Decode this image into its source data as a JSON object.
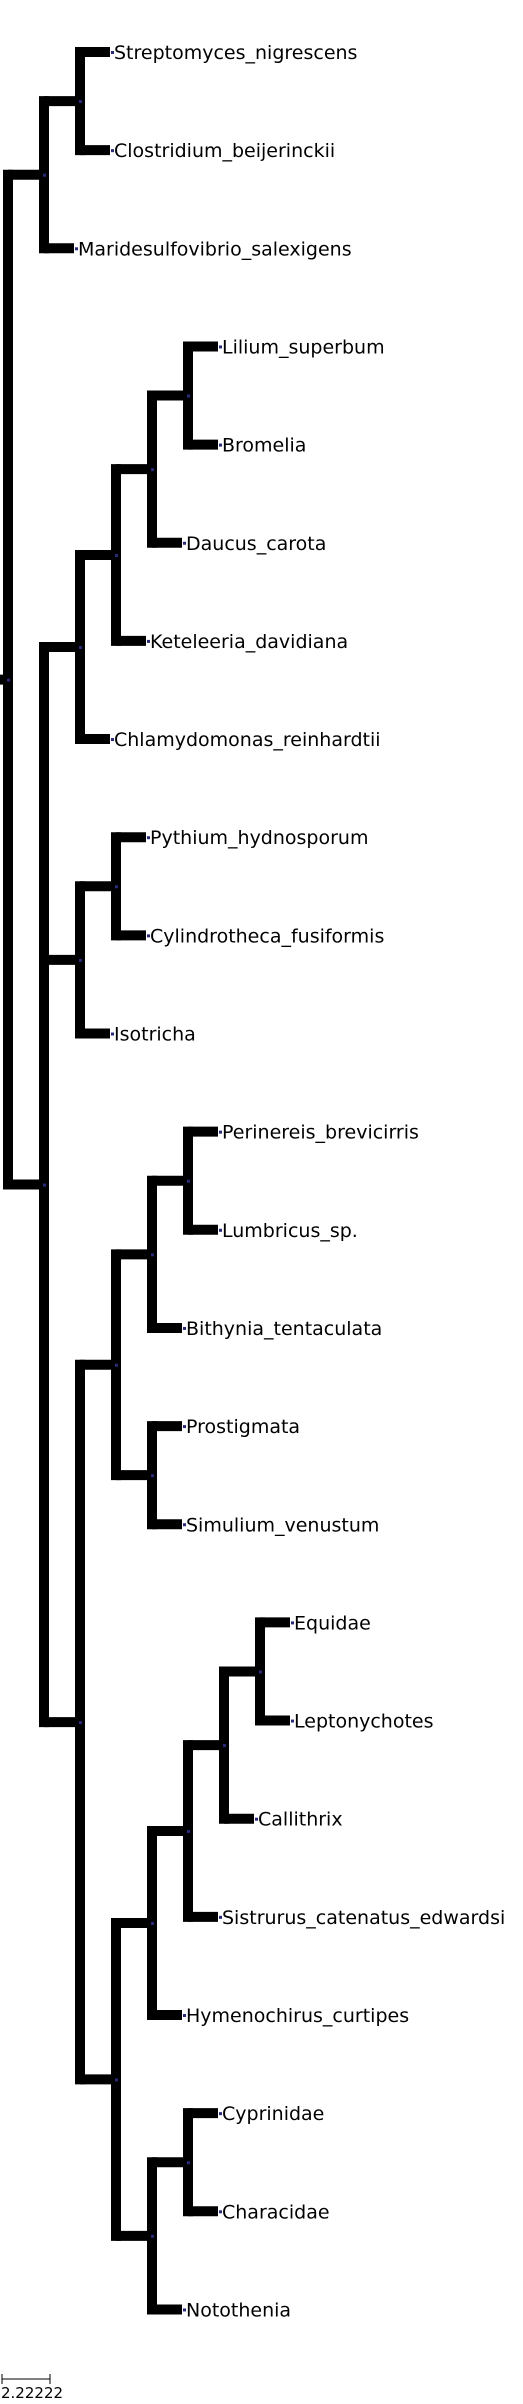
{
  "tree": {
    "children": [
      {
        "children": [
          {
            "children": [
              {
                "name": "Streptomyces_nigrescens"
              },
              {
                "name": "Clostridium_beijerinckii"
              }
            ]
          },
          {
            "name": "Maridesulfovibrio_salexigens"
          }
        ]
      },
      {
        "children": [
          {
            "children": [
              {
                "children": [
                  {
                    "children": [
                      {
                        "children": [
                          {
                            "name": "Lilium_superbum"
                          },
                          {
                            "name": "Bromelia"
                          }
                        ]
                      },
                      {
                        "name": "Daucus_carota"
                      }
                    ]
                  },
                  {
                    "name": "Keteleeria_davidiana"
                  }
                ]
              },
              {
                "name": "Chlamydomonas_reinhardtii"
              }
            ]
          },
          {
            "children": [
              {
                "children": [
                  {
                    "name": "Pythium_hydnosporum"
                  },
                  {
                    "name": "Cylindrotheca_fusiformis"
                  }
                ]
              },
              {
                "name": "Isotricha"
              }
            ]
          },
          {
            "children": [
              {
                "children": [
                  {
                    "children": [
                      {
                        "children": [
                          {
                            "name": "Perinereis_brevicirris"
                          },
                          {
                            "name": "Lumbricus_sp."
                          }
                        ]
                      },
                      {
                        "name": "Bithynia_tentaculata"
                      }
                    ]
                  },
                  {
                    "children": [
                      {
                        "name": "Prostigmata"
                      },
                      {
                        "name": "Simulium_venustum"
                      }
                    ]
                  }
                ]
              },
              {
                "children": [
                  {
                    "children": [
                      {
                        "children": [
                          {
                            "children": [
                              {
                                "children": [
                                  {
                                    "name": "Equidae"
                                  },
                                  {
                                    "name": "Leptonychotes"
                                  }
                                ]
                              },
                              {
                                "name": "Callithrix"
                              }
                            ]
                          },
                          {
                            "name": "Sistrurus_catenatus_edwardsi"
                          }
                        ]
                      },
                      {
                        "name": "Hymenochirus_curtipes"
                      }
                    ]
                  },
                  {
                    "children": [
                      {
                        "children": [
                          {
                            "name": "Cyprinidae"
                          },
                          {
                            "name": "Characidae"
                          }
                        ]
                      },
                      {
                        "name": "Notothenia"
                      }
                    ]
                  }
                ]
              }
            ]
          }
        ]
      }
    ]
  },
  "scale_bar": {
    "label": "2.22222"
  },
  "colors": {
    "branch": "#000000",
    "node_marker": "#2a2a7a",
    "background": "#ffffff"
  }
}
